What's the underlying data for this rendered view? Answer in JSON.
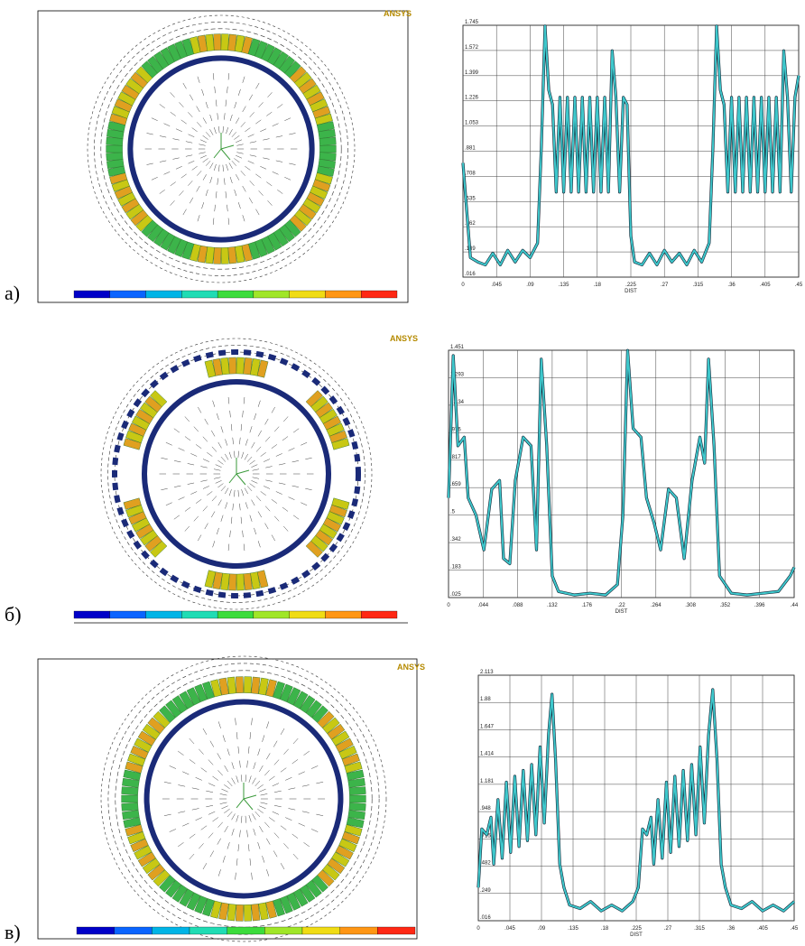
{
  "panels": [
    {
      "label": "а)",
      "logo": "ANSYS"
    },
    {
      "label": "б)",
      "logo": "ANSYS"
    },
    {
      "label": "в)",
      "logo": "ANSYS"
    }
  ],
  "chart_data": [
    {
      "type": "line",
      "x_label": "DIST",
      "color": "#3ec8cc",
      "grid": true,
      "xlim": [
        0,
        0.45
      ],
      "ylim": [
        0.016,
        1.745
      ],
      "xticks": [
        0,
        {
          "value": 0.045,
          "label": ".045"
        },
        {
          "value": 0.09,
          "label": ".09"
        },
        {
          "value": 0.135,
          "label": ".135"
        },
        {
          "value": 0.18,
          "label": ".18"
        },
        {
          "value": 0.225,
          "label": ".225"
        },
        {
          "value": 0.27,
          "label": ".27"
        },
        {
          "value": 0.315,
          "label": ".315"
        },
        {
          "value": 0.36,
          "label": ".36"
        },
        {
          "value": 0.405,
          "label": ".405"
        },
        {
          "value": 0.45,
          "label": ".45"
        }
      ],
      "yticks": [
        {
          "value": 0.016,
          "label": ".016"
        },
        {
          "value": 0.189,
          "label": ".189"
        },
        {
          "value": 0.362,
          "label": ".362"
        },
        {
          "value": 0.535,
          "label": ".535"
        },
        {
          "value": 0.708,
          "label": ".708"
        },
        {
          "value": 0.881,
          "label": ".881"
        },
        1.053,
        1.226,
        1.399,
        1.572,
        1.745
      ],
      "x": [
        0,
        0.01,
        0.02,
        0.03,
        0.04,
        0.05,
        0.06,
        0.07,
        0.08,
        0.09,
        0.1,
        0.105,
        0.11,
        0.115,
        0.12,
        0.125,
        0.13,
        0.135,
        0.14,
        0.145,
        0.15,
        0.155,
        0.16,
        0.165,
        0.17,
        0.175,
        0.18,
        0.185,
        0.19,
        0.195,
        0.2,
        0.205,
        0.21,
        0.215,
        0.22,
        0.225,
        0.23,
        0.24,
        0.25,
        0.26,
        0.27,
        0.28,
        0.29,
        0.3,
        0.31,
        0.32,
        0.33,
        0.335,
        0.34,
        0.345,
        0.35,
        0.355,
        0.36,
        0.365,
        0.37,
        0.375,
        0.38,
        0.385,
        0.39,
        0.395,
        0.4,
        0.405,
        0.41,
        0.415,
        0.42,
        0.425,
        0.43,
        0.435,
        0.44,
        0.445,
        0.45
      ],
      "values": [
        0.8,
        0.15,
        0.12,
        0.1,
        0.18,
        0.1,
        0.2,
        0.12,
        0.2,
        0.15,
        0.25,
        0.9,
        1.74,
        1.3,
        1.2,
        0.6,
        1.25,
        0.6,
        1.25,
        0.6,
        1.25,
        0.6,
        1.25,
        0.6,
        1.25,
        0.6,
        1.25,
        0.6,
        1.25,
        0.6,
        1.57,
        1.25,
        0.6,
        1.25,
        1.2,
        0.3,
        0.12,
        0.1,
        0.18,
        0.1,
        0.2,
        0.12,
        0.18,
        0.1,
        0.2,
        0.12,
        0.25,
        0.9,
        1.74,
        1.3,
        1.2,
        0.6,
        1.25,
        0.6,
        1.25,
        0.6,
        1.25,
        0.6,
        1.25,
        0.6,
        1.25,
        0.6,
        1.25,
        0.6,
        1.25,
        0.6,
        1.57,
        1.25,
        0.6,
        1.25,
        1.4
      ]
    },
    {
      "type": "line",
      "x_label": "DIST",
      "color": "#3ec8cc",
      "grid": true,
      "xlim": [
        0,
        0.44
      ],
      "ylim": [
        0.025,
        1.451
      ],
      "xticks": [
        0,
        {
          "value": 0.044,
          "label": ".044"
        },
        {
          "value": 0.088,
          "label": ".088"
        },
        {
          "value": 0.132,
          "label": ".132"
        },
        {
          "value": 0.176,
          "label": ".176"
        },
        {
          "value": 0.22,
          "label": ".22"
        },
        {
          "value": 0.264,
          "label": ".264"
        },
        {
          "value": 0.308,
          "label": ".308"
        },
        {
          "value": 0.352,
          "label": ".352"
        },
        {
          "value": 0.396,
          "label": ".396"
        },
        {
          "value": 0.44,
          "label": ".44"
        }
      ],
      "yticks": [
        {
          "value": 0.025,
          "label": ".025"
        },
        {
          "value": 0.183,
          "label": ".183"
        },
        {
          "value": 0.342,
          "label": ".342"
        },
        {
          "value": 0.5,
          "label": ".5"
        },
        {
          "value": 0.659,
          "label": ".659"
        },
        {
          "value": 0.817,
          "label": ".817"
        },
        {
          "value": 0.976,
          "label": ".976"
        },
        1.134,
        1.293,
        1.451
      ],
      "x": [
        0,
        0.006,
        0.012,
        0.02,
        0.025,
        0.035,
        0.045,
        0.055,
        0.065,
        0.07,
        0.078,
        0.085,
        0.095,
        0.105,
        0.112,
        0.118,
        0.125,
        0.132,
        0.14,
        0.16,
        0.18,
        0.2,
        0.215,
        0.222,
        0.228,
        0.235,
        0.245,
        0.252,
        0.262,
        0.27,
        0.28,
        0.29,
        0.3,
        0.31,
        0.32,
        0.326,
        0.331,
        0.338,
        0.345,
        0.36,
        0.38,
        0.4,
        0.42,
        0.435,
        0.44
      ],
      "values": [
        0.6,
        1.42,
        0.9,
        0.95,
        0.6,
        0.5,
        0.3,
        0.65,
        0.7,
        0.25,
        0.22,
        0.7,
        0.95,
        0.9,
        0.3,
        1.4,
        0.9,
        0.15,
        0.06,
        0.04,
        0.05,
        0.04,
        0.1,
        0.5,
        1.45,
        1.0,
        0.95,
        0.6,
        0.45,
        0.3,
        0.65,
        0.6,
        0.25,
        0.7,
        0.95,
        0.8,
        1.4,
        0.9,
        0.15,
        0.05,
        0.04,
        0.05,
        0.06,
        0.15,
        0.2
      ]
    },
    {
      "type": "line",
      "x_label": "DIST",
      "color": "#3ec8cc",
      "grid": true,
      "xlim": [
        0,
        0.45
      ],
      "ylim": [
        0.016,
        2.113
      ],
      "xticks": [
        0,
        {
          "value": 0.045,
          "label": ".045"
        },
        {
          "value": 0.09,
          "label": ".09"
        },
        {
          "value": 0.135,
          "label": ".135"
        },
        {
          "value": 0.18,
          "label": ".18"
        },
        {
          "value": 0.225,
          "label": ".225"
        },
        {
          "value": 0.27,
          "label": ".27"
        },
        {
          "value": 0.315,
          "label": ".315"
        },
        {
          "value": 0.36,
          "label": ".36"
        },
        {
          "value": 0.405,
          "label": ".405"
        },
        {
          "value": 0.45,
          "label": ".45"
        }
      ],
      "yticks": [
        {
          "value": 0.016,
          "label": ".016"
        },
        {
          "value": 0.249,
          "label": ".249"
        },
        {
          "value": 0.482,
          "label": ".482"
        },
        {
          "value": 0.715,
          "label": ".715"
        },
        {
          "value": 0.948,
          "label": ".948"
        },
        1.181,
        1.414,
        1.647,
        1.88,
        2.113
      ],
      "x": [
        0,
        0.005,
        0.012,
        0.018,
        0.022,
        0.028,
        0.034,
        0.04,
        0.046,
        0.052,
        0.058,
        0.064,
        0.07,
        0.076,
        0.082,
        0.088,
        0.094,
        0.1,
        0.105,
        0.11,
        0.116,
        0.122,
        0.13,
        0.145,
        0.16,
        0.175,
        0.19,
        0.205,
        0.22,
        0.228,
        0.234,
        0.24,
        0.246,
        0.25,
        0.256,
        0.262,
        0.268,
        0.274,
        0.28,
        0.286,
        0.292,
        0.298,
        0.304,
        0.31,
        0.316,
        0.322,
        0.328,
        0.334,
        0.34,
        0.346,
        0.352,
        0.36,
        0.375,
        0.39,
        0.405,
        0.42,
        0.435,
        0.45
      ],
      "values": [
        0.3,
        0.8,
        0.75,
        0.9,
        0.5,
        1.05,
        0.55,
        1.2,
        0.6,
        1.25,
        0.65,
        1.3,
        0.7,
        1.35,
        0.75,
        1.5,
        0.85,
        1.6,
        1.95,
        1.4,
        0.5,
        0.3,
        0.15,
        0.12,
        0.18,
        0.1,
        0.15,
        0.1,
        0.18,
        0.3,
        0.8,
        0.75,
        0.9,
        0.5,
        1.05,
        0.55,
        1.2,
        0.6,
        1.25,
        0.65,
        1.3,
        0.7,
        1.35,
        0.75,
        1.5,
        0.85,
        1.6,
        1.99,
        1.4,
        0.5,
        0.3,
        0.15,
        0.12,
        0.18,
        0.1,
        0.15,
        0.1,
        0.18
      ]
    }
  ]
}
